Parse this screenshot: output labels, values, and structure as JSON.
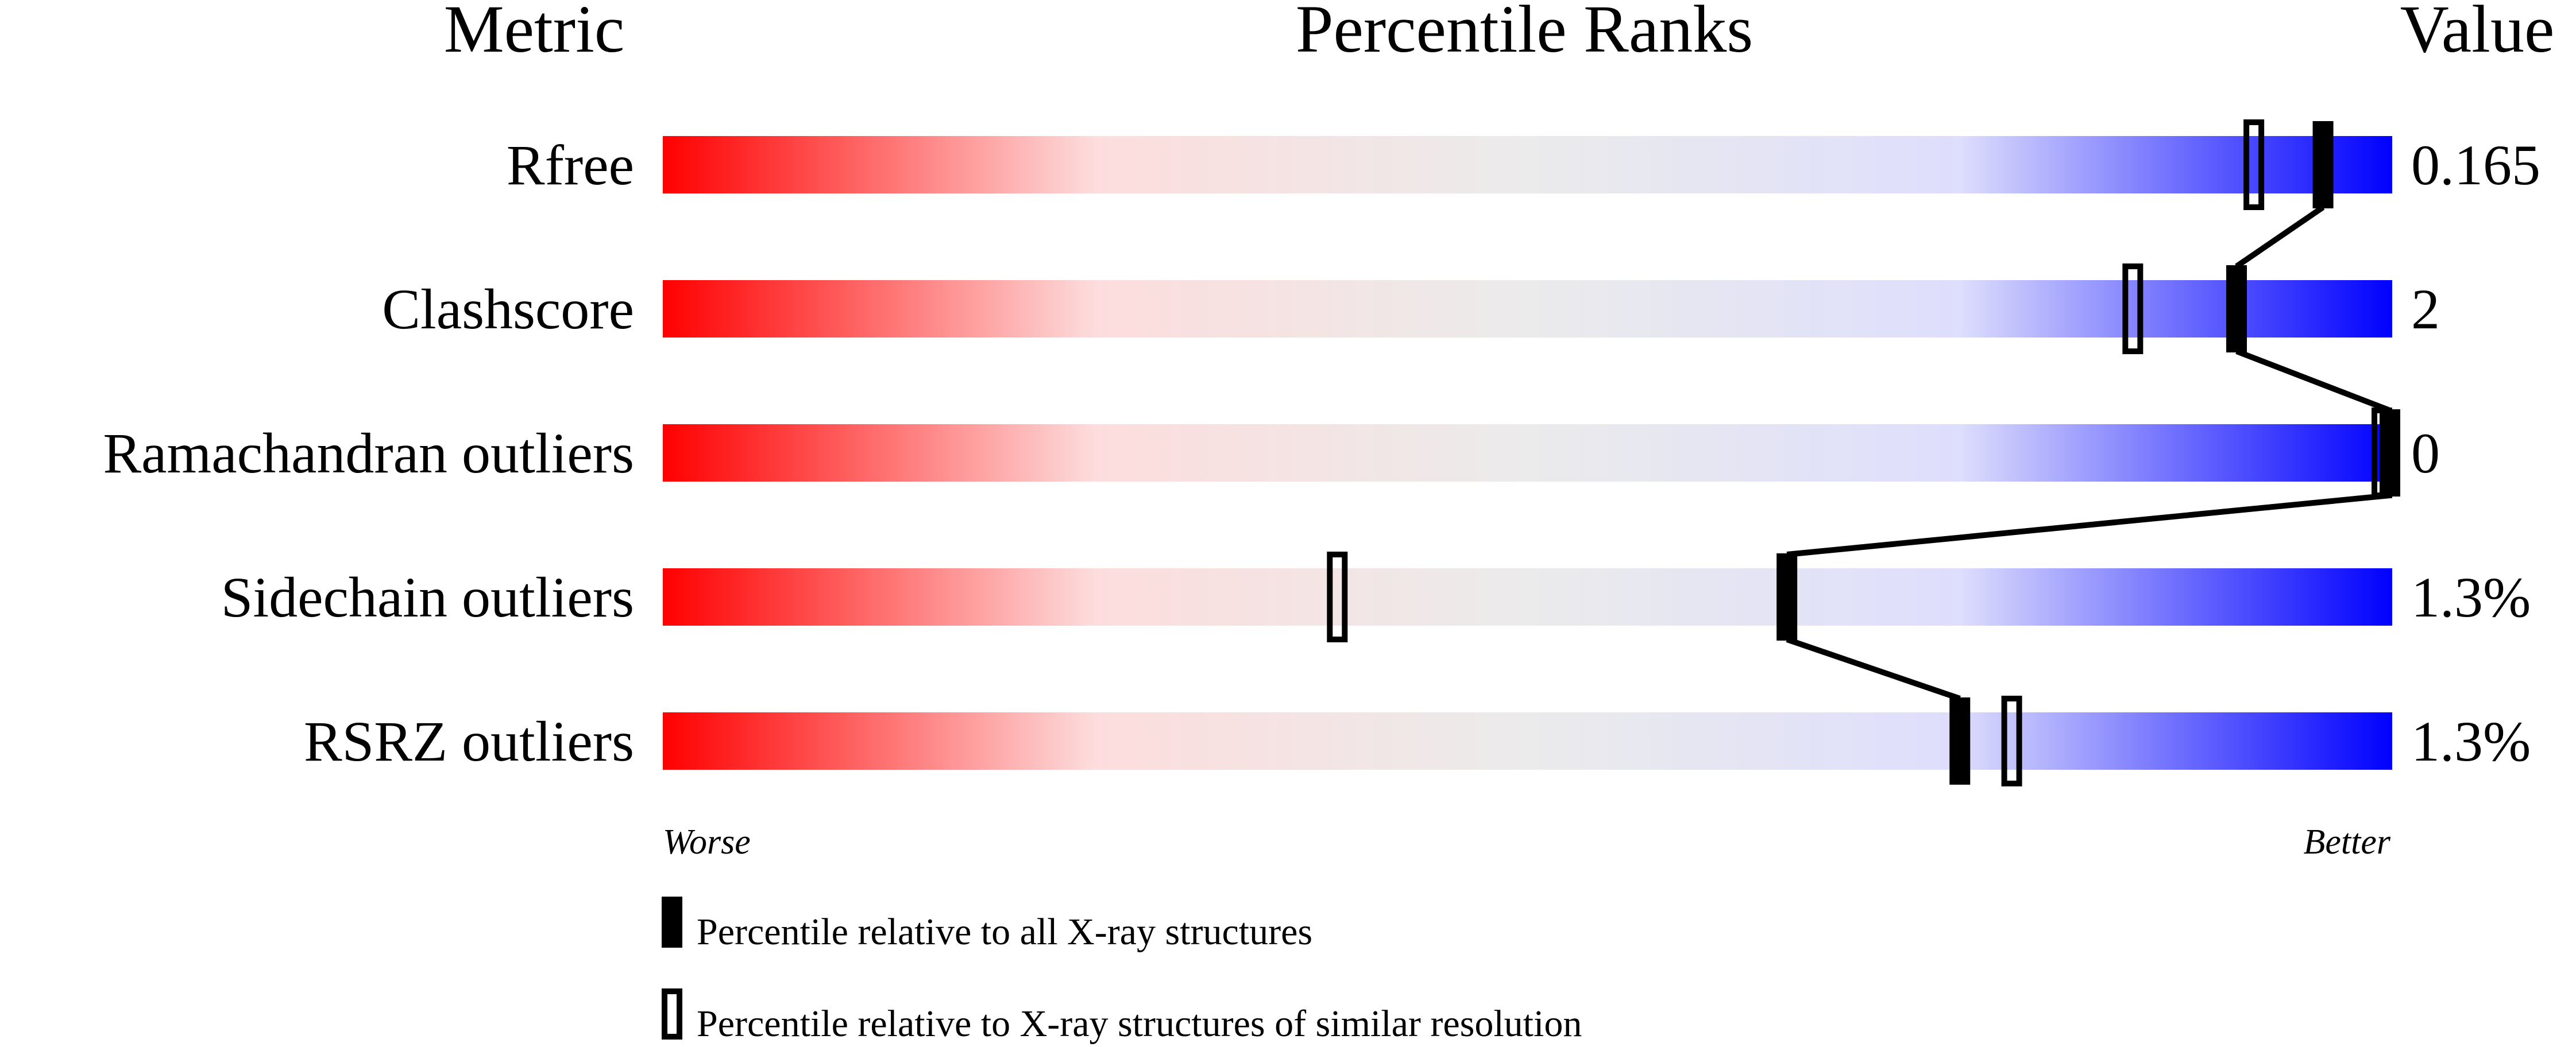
{
  "chart_data": {
    "type": "percentile-bar",
    "headers": {
      "metric": "Metric",
      "ranks": "Percentile Ranks",
      "value": "Value"
    },
    "xlim": [
      0,
      100
    ],
    "axis_labels": {
      "left": "Worse",
      "right": "Better"
    },
    "gradient_colors": [
      "#ff0000",
      "#fddddd",
      "#ebebeb",
      "#dedefd",
      "#0000ff"
    ],
    "metrics": [
      {
        "name": "Rfree",
        "value": "0.165",
        "percentile_all": 96,
        "percentile_similar": 92
      },
      {
        "name": "Clashscore",
        "value": "2",
        "percentile_all": 91,
        "percentile_similar": 85
      },
      {
        "name": "Ramachandran outliers",
        "value": "0",
        "percentile_all": 100,
        "percentile_similar": 100
      },
      {
        "name": "Sidechain outliers",
        "value": "1.3%",
        "percentile_all": 65,
        "percentile_similar": 39
      },
      {
        "name": "RSRZ outliers",
        "value": "1.3%",
        "percentile_all": 75,
        "percentile_similar": 78
      }
    ],
    "legend": [
      {
        "marker": "filled",
        "label": "Percentile relative to all X-ray structures"
      },
      {
        "marker": "open",
        "label": "Percentile relative to X-ray structures of similar resolution"
      }
    ]
  }
}
